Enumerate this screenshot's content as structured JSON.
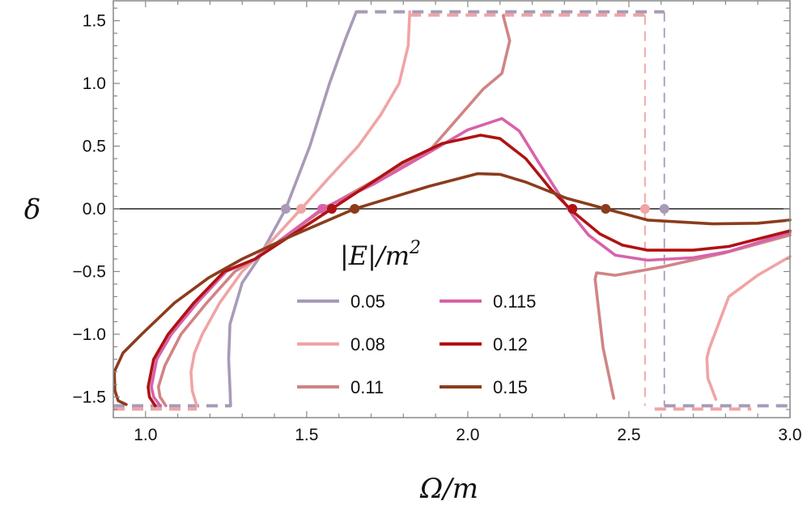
{
  "chart_data": {
    "type": "line",
    "xlabel": "Ω/m",
    "ylabel": "δ",
    "xlim": [
      0.9,
      3.0
    ],
    "ylim": [
      -1.665,
      1.665
    ],
    "xticks": [
      "1.0",
      "1.5",
      "2.0",
      "2.5",
      "3.0"
    ],
    "xtick_values": [
      1.0,
      1.5,
      2.0,
      2.5,
      3.0
    ],
    "yticks": [
      "-1.5",
      "-1.0",
      "-0.5",
      "0.0",
      "0.5",
      "1.0",
      "1.5"
    ],
    "ytick_values": [
      -1.5,
      -1.0,
      -0.5,
      0.0,
      0.5,
      1.0,
      1.5
    ],
    "grid": false,
    "zero_line": true,
    "legend": {
      "title": "|E|/m",
      "title_sup": "2",
      "placement": "center"
    },
    "series": [
      {
        "name": "0.05",
        "color": "#a89ab8",
        "segments": [
          [
            [
              1.264,
              -1.571
            ],
            [
              1.262,
              -1.43
            ],
            [
              1.258,
              -1.2
            ],
            [
              1.262,
              -0.92
            ],
            [
              1.3,
              -0.59
            ],
            [
              1.35,
              -0.4
            ],
            [
              1.435,
              0.0
            ],
            [
              1.51,
              0.5
            ],
            [
              1.571,
              1.0
            ],
            [
              1.62,
              1.35
            ],
            [
              1.654,
              1.571
            ]
          ]
        ],
        "dashed": [
          [
            [
              0.9,
              -1.571
            ],
            [
              1.264,
              -1.571
            ]
          ],
          [
            [
              1.654,
              1.571
            ],
            [
              2.61,
              1.571
            ],
            [
              2.61,
              -1.571
            ],
            [
              3.0,
              -1.571
            ]
          ]
        ],
        "zero_points": [
          1.435,
          2.61
        ]
      },
      {
        "name": "0.08",
        "color": "#f0a4a4",
        "segments": [
          [
            [
              1.159,
              -1.571
            ],
            [
              1.145,
              -1.45
            ],
            [
              1.141,
              -1.3
            ],
            [
              1.152,
              -1.15
            ],
            [
              1.176,
              -1.0
            ],
            [
              1.23,
              -0.75
            ],
            [
              1.3,
              -0.5
            ],
            [
              1.34,
              -0.4
            ],
            [
              1.483,
              0.0
            ],
            [
              1.57,
              0.25
            ],
            [
              1.66,
              0.5
            ],
            [
              1.73,
              0.75
            ],
            [
              1.787,
              1.0
            ],
            [
              1.815,
              1.3
            ],
            [
              1.82,
              1.571
            ]
          ],
          [
            [
              3.0,
              -0.38
            ],
            [
              2.9,
              -0.53
            ],
            [
              2.81,
              -0.7
            ],
            [
              2.75,
              -1.11
            ],
            [
              2.742,
              -1.19
            ],
            [
              2.745,
              -1.35
            ],
            [
              2.77,
              -1.52
            ]
          ]
        ],
        "dashed": [
          [
            [
              0.9,
              -1.571
            ],
            [
              1.159,
              -1.571
            ]
          ],
          [
            [
              1.82,
              1.571
            ],
            [
              2.55,
              1.571
            ],
            [
              2.55,
              -1.571
            ]
          ],
          [
            [
              2.58,
              -1.571
            ],
            [
              2.88,
              -1.571
            ]
          ]
        ],
        "zero_points": [
          1.483,
          2.55
        ]
      },
      {
        "name": "0.11",
        "color": "#d08484",
        "segments": [
          [
            [
              1.063,
              -1.571
            ],
            [
              1.045,
              -1.5
            ],
            [
              1.04,
              -1.42
            ],
            [
              1.06,
              -1.25
            ],
            [
              1.11,
              -1.0
            ],
            [
              1.19,
              -0.75
            ],
            [
              1.277,
              -0.5
            ],
            [
              1.34,
              -0.4
            ],
            [
              1.553,
              0.0
            ],
            [
              1.72,
              0.24
            ],
            [
              1.88,
              0.46
            ],
            [
              2.048,
              0.955
            ],
            [
              2.106,
              1.08
            ],
            [
              2.13,
              1.34
            ],
            [
              2.11,
              1.54
            ]
          ],
          [
            [
              2.453,
              -1.51
            ],
            [
              2.42,
              -1.11
            ],
            [
              2.395,
              -0.56
            ],
            [
              2.4,
              -0.51
            ],
            [
              2.458,
              -0.53
            ],
            [
              2.61,
              -0.46
            ],
            [
              2.8,
              -0.35
            ],
            [
              3.0,
              -0.21
            ]
          ]
        ],
        "dashed": [],
        "zero_points": [
          1.553
        ]
      },
      {
        "name": "0.115",
        "color": "#d862aa",
        "segments": [
          [
            [
              1.046,
              -1.571
            ],
            [
              1.025,
              -1.5
            ],
            [
              1.018,
              -1.42
            ],
            [
              1.035,
              -1.2
            ],
            [
              1.08,
              -1.0
            ],
            [
              1.16,
              -0.75
            ],
            [
              1.25,
              -0.5
            ],
            [
              1.34,
              -0.4
            ],
            [
              1.548,
              0.0
            ],
            [
              1.71,
              0.2
            ],
            [
              1.88,
              0.45
            ],
            [
              2.0,
              0.63
            ],
            [
              2.106,
              0.72
            ],
            [
              2.16,
              0.62
            ],
            [
              2.22,
              0.37
            ],
            [
              2.3,
              0.05
            ],
            [
              2.325,
              -0.05
            ],
            [
              2.375,
              -0.21
            ],
            [
              2.458,
              -0.37
            ],
            [
              2.558,
              -0.41
            ],
            [
              2.7,
              -0.39
            ],
            [
              2.81,
              -0.34
            ],
            [
              3.0,
              -0.19
            ]
          ]
        ],
        "dashed": [],
        "zero_points": [
          1.548,
          2.325
        ]
      },
      {
        "name": "0.12",
        "color": "#b01212",
        "segments": [
          [
            [
              1.03,
              -1.571
            ],
            [
              1.012,
              -1.5
            ],
            [
              1.008,
              -1.42
            ],
            [
              1.025,
              -1.2
            ],
            [
              1.07,
              -1.0
            ],
            [
              1.15,
              -0.75
            ],
            [
              1.244,
              -0.5
            ],
            [
              1.34,
              -0.4
            ],
            [
              1.578,
              0.0
            ],
            [
              1.797,
              0.37
            ],
            [
              1.92,
              0.52
            ],
            [
              2.04,
              0.587
            ],
            [
              2.1,
              0.56
            ],
            [
              2.18,
              0.4
            ],
            [
              2.26,
              0.15
            ],
            [
              2.325,
              -0.02
            ],
            [
              2.41,
              -0.2
            ],
            [
              2.48,
              -0.29
            ],
            [
              2.558,
              -0.33
            ],
            [
              2.7,
              -0.33
            ],
            [
              2.81,
              -0.3
            ],
            [
              3.0,
              -0.175
            ]
          ]
        ],
        "dashed": [],
        "zero_points": [
          1.578,
          2.325
        ]
      },
      {
        "name": "0.15",
        "color": "#8b3c1c",
        "segments": [
          [
            [
              0.94,
              -1.56
            ],
            [
              0.915,
              -1.53
            ],
            [
              0.905,
              -1.45
            ],
            [
              0.903,
              -1.3
            ],
            [
              0.93,
              -1.15
            ],
            [
              0.988,
              -1.0
            ],
            [
              1.09,
              -0.75
            ],
            [
              1.196,
              -0.55
            ],
            [
              1.3,
              -0.4
            ],
            [
              1.45,
              -0.22
            ],
            [
              1.649,
              0.0
            ],
            [
              1.88,
              0.18
            ],
            [
              2.03,
              0.28
            ],
            [
              2.1,
              0.275
            ],
            [
              2.18,
              0.213
            ],
            [
              2.307,
              0.084
            ],
            [
              2.428,
              0.0
            ],
            [
              2.558,
              -0.09
            ],
            [
              2.76,
              -0.12
            ],
            [
              2.9,
              -0.115
            ],
            [
              3.0,
              -0.09
            ]
          ]
        ],
        "dashed": [],
        "zero_points": [
          1.649,
          2.428
        ]
      }
    ]
  }
}
